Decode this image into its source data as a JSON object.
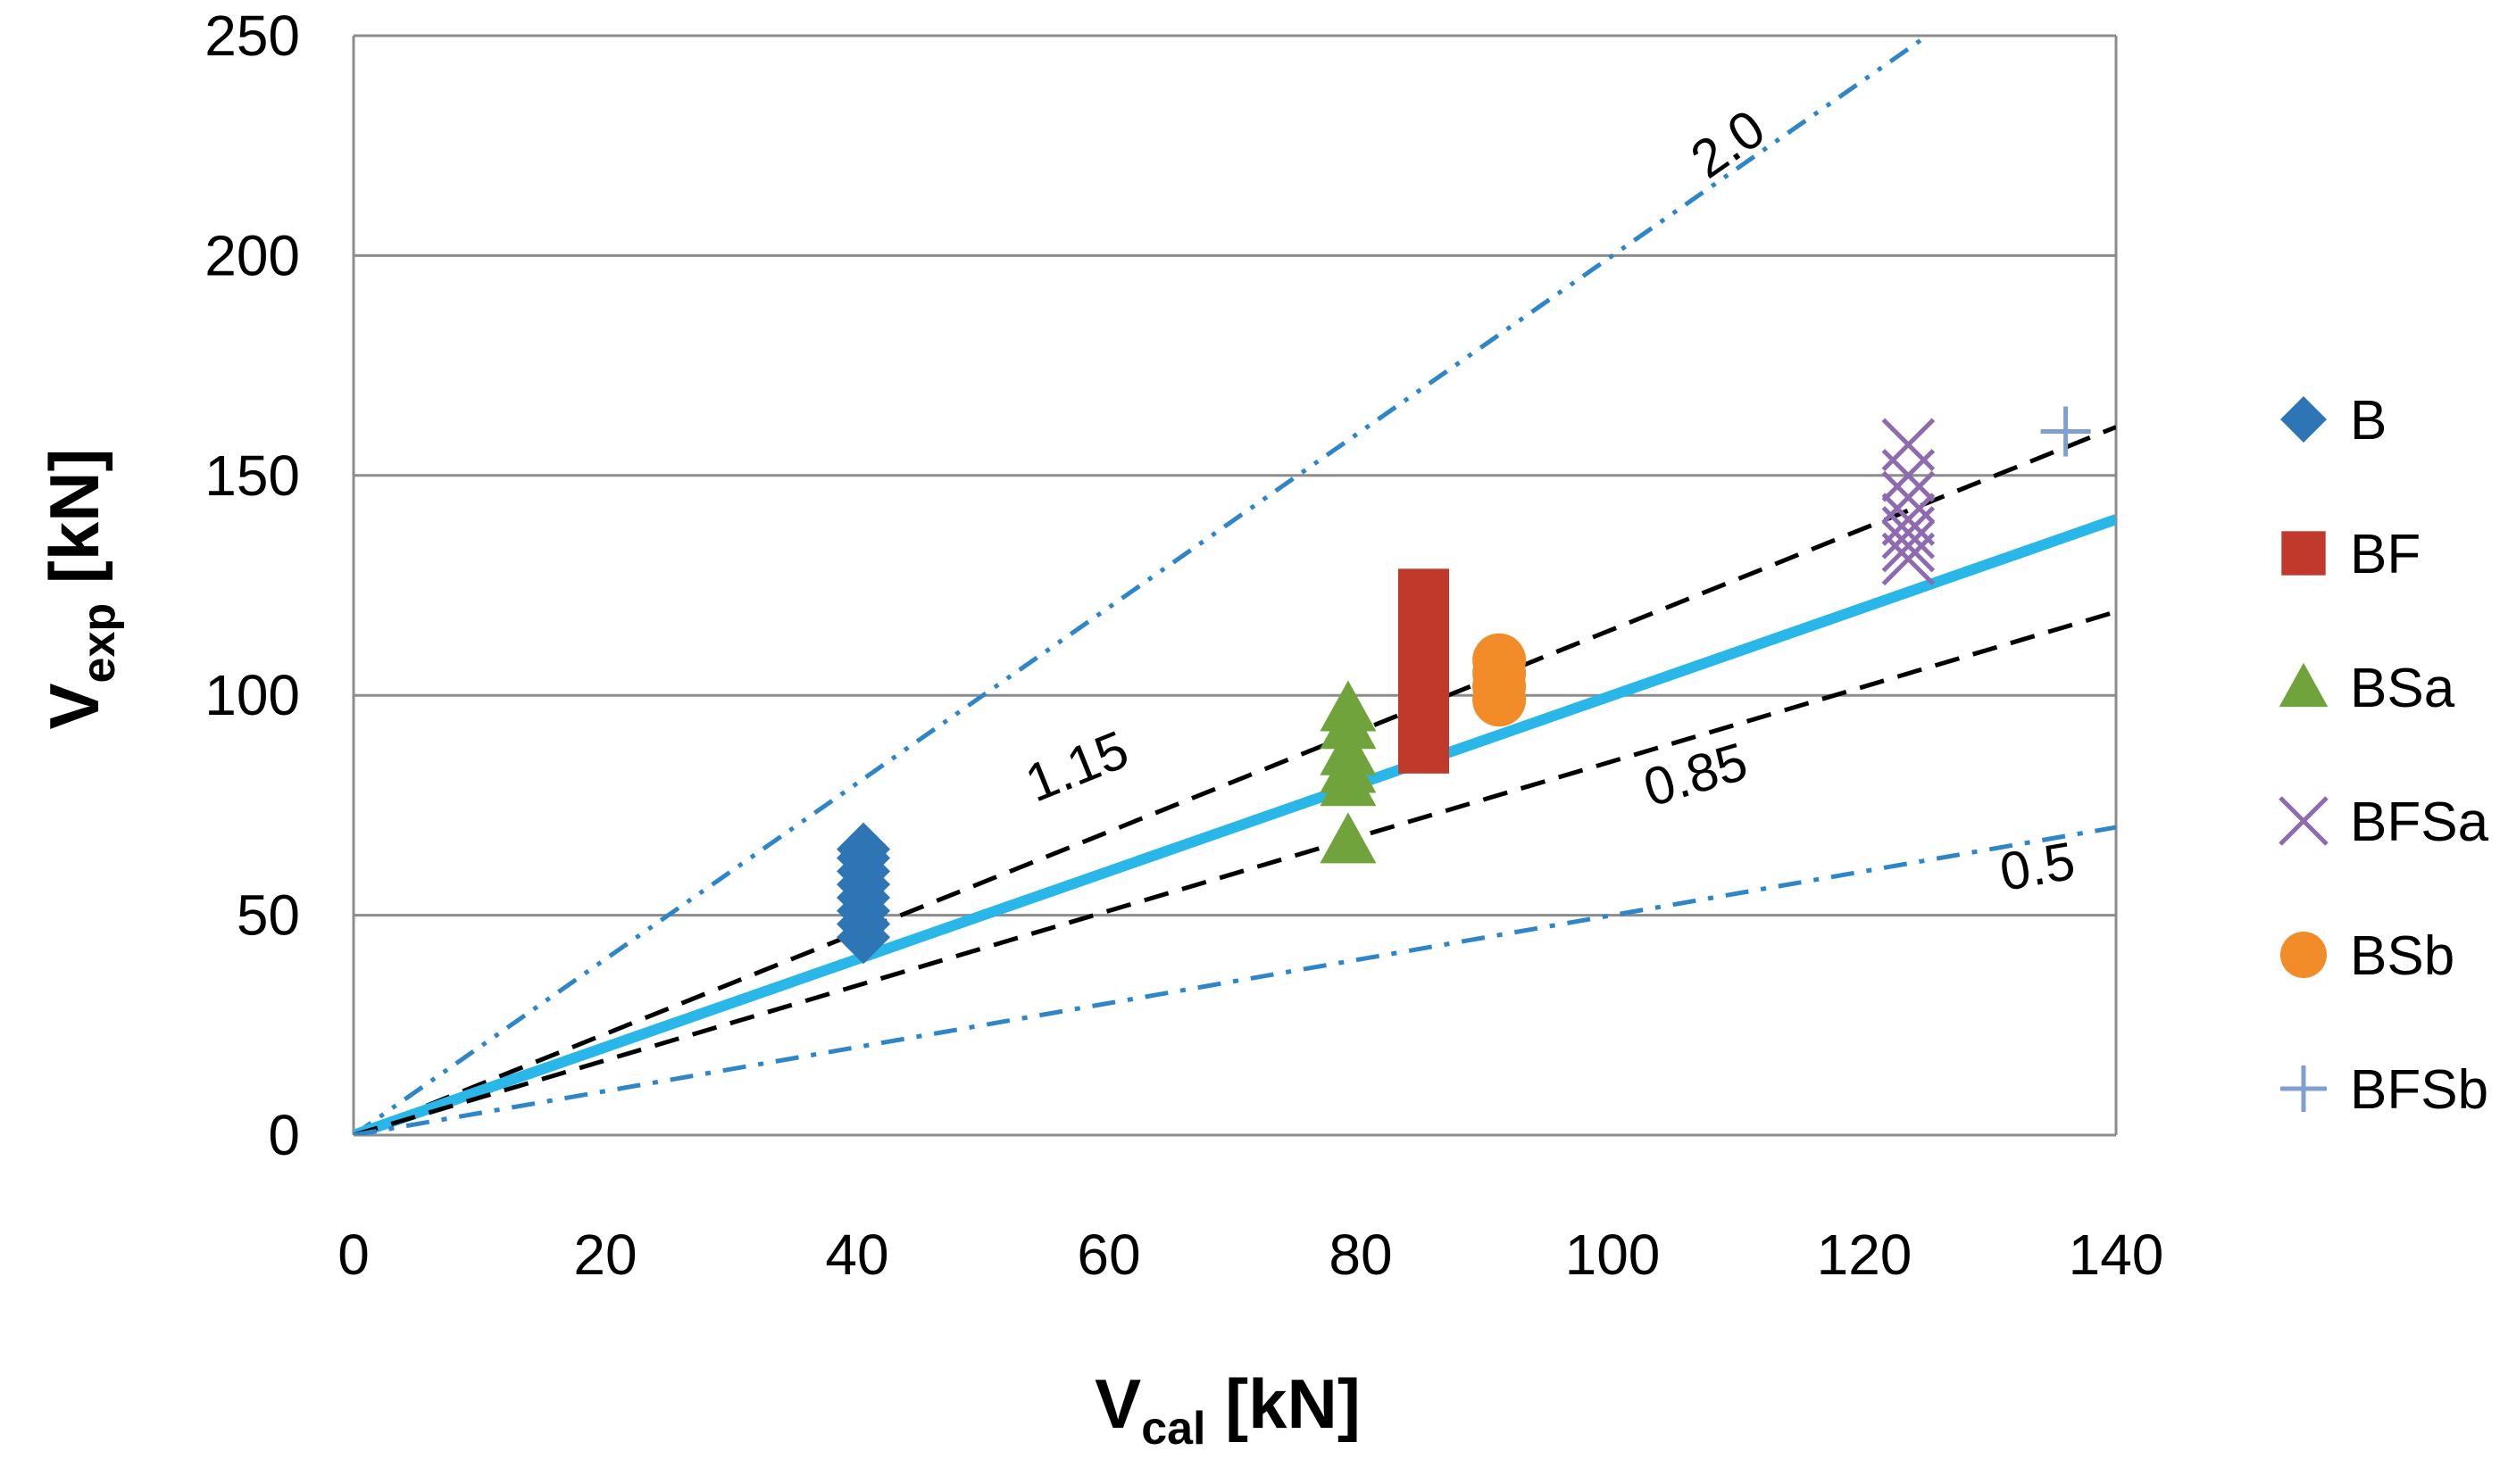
{
  "chart_data": {
    "type": "scatter",
    "xlabel": {
      "main": "V",
      "sub": "cal",
      "unit": " [kN]"
    },
    "ylabel": {
      "main": "V",
      "sub": "exp",
      "unit": " [kN]"
    },
    "xlim": [
      0,
      140
    ],
    "ylim": [
      0,
      250
    ],
    "xticks": [
      0,
      20,
      40,
      60,
      80,
      100,
      120,
      140
    ],
    "yticks": [
      0,
      50,
      100,
      150,
      200,
      250
    ],
    "grid": "horizontal",
    "legend_position": "right",
    "series": [
      {
        "name": "B",
        "marker": "diamond",
        "color": "#2E75B6",
        "points": [
          [
            40.5,
            45
          ],
          [
            40.5,
            48
          ],
          [
            40.5,
            51
          ],
          [
            40.5,
            54
          ],
          [
            40.5,
            57
          ],
          [
            40.5,
            60
          ],
          [
            40.5,
            63
          ],
          [
            40.5,
            65
          ]
        ]
      },
      {
        "name": "BF",
        "marker": "square",
        "color": "#C0392B",
        "points": [
          [
            85,
            88
          ],
          [
            85,
            91
          ],
          [
            85,
            95
          ],
          [
            85,
            99
          ],
          [
            85,
            103
          ],
          [
            85,
            107
          ],
          [
            85,
            111
          ],
          [
            85,
            115
          ],
          [
            85,
            119
          ],
          [
            85,
            123
          ]
        ]
      },
      {
        "name": "BSa",
        "marker": "triangle",
        "color": "#70A33C",
        "points": [
          [
            79,
            67
          ],
          [
            79,
            80
          ],
          [
            79,
            83
          ],
          [
            79,
            87
          ],
          [
            79,
            93
          ],
          [
            79,
            97
          ]
        ]
      },
      {
        "name": "BFSa",
        "marker": "x",
        "color": "#8E6BAE",
        "points": [
          [
            123.5,
            131
          ],
          [
            123.5,
            134
          ],
          [
            123.5,
            137
          ],
          [
            123.5,
            140
          ],
          [
            123.5,
            145
          ],
          [
            123.5,
            150
          ],
          [
            123.5,
            157
          ]
        ]
      },
      {
        "name": "BSb",
        "marker": "circle",
        "color": "#F28C28",
        "points": [
          [
            91,
            99
          ],
          [
            91,
            102
          ],
          [
            91,
            105
          ],
          [
            91,
            108
          ]
        ]
      },
      {
        "name": "BFSb",
        "marker": "plus",
        "color": "#7F9FD3",
        "points": [
          [
            136,
            160
          ]
        ]
      }
    ],
    "reference_lines": [
      {
        "label": "2.0",
        "slope": 2.0,
        "style": "dash-dot-dot",
        "color": "#2E86C8",
        "label_at": [
          110,
          222
        ]
      },
      {
        "label": "1.15",
        "slope": 1.15,
        "style": "dashed",
        "color": "#000000",
        "label_at": [
          58,
          80
        ]
      },
      {
        "label": "",
        "slope": 1.0,
        "style": "solid",
        "color": "#29B6E8"
      },
      {
        "label": "0.85",
        "slope": 0.85,
        "style": "dashed",
        "color": "#000000",
        "label_at": [
          107,
          78
        ]
      },
      {
        "label": "0.5",
        "slope": 0.5,
        "style": "dash-dot",
        "color": "#2E86C8",
        "label_at": [
          134,
          57
        ]
      }
    ]
  }
}
